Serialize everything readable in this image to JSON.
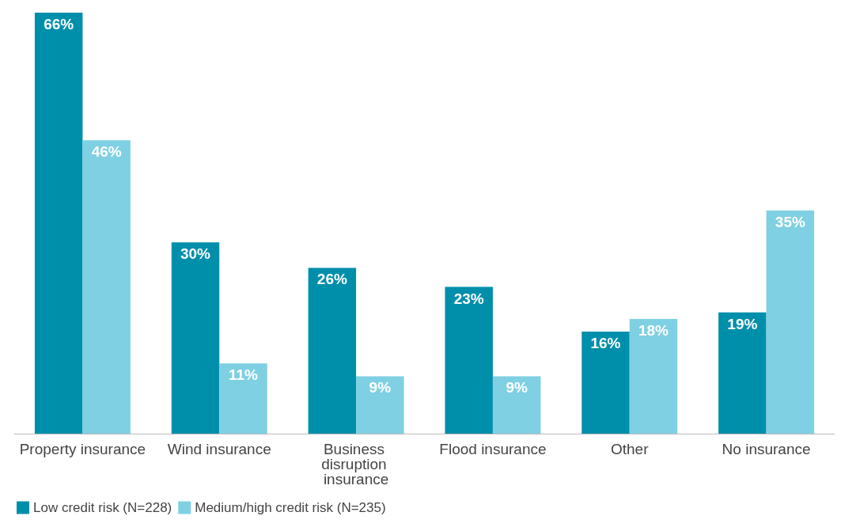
{
  "chart_data": {
    "type": "bar",
    "categories": [
      "Property insurance",
      "Wind insurance",
      "Business disruption insurance",
      "Flood insurance",
      "Other",
      "No insurance"
    ],
    "series": [
      {
        "name": "Low credit risk (N=228)",
        "color": "#008fab",
        "values": [
          66,
          30,
          26,
          23,
          16,
          19
        ],
        "value_labels": [
          "66%",
          "30%",
          "26%",
          "23%",
          "16%",
          "19%"
        ]
      },
      {
        "name": "Medium/high credit risk (N=235)",
        "color": "#7fd0e2",
        "values": [
          46,
          11,
          9,
          9,
          18,
          35
        ],
        "value_labels": [
          "46%",
          "11%",
          "9%",
          "9%",
          "18%",
          "35%"
        ]
      }
    ],
    "grid": false,
    "legend": "bottom left"
  }
}
